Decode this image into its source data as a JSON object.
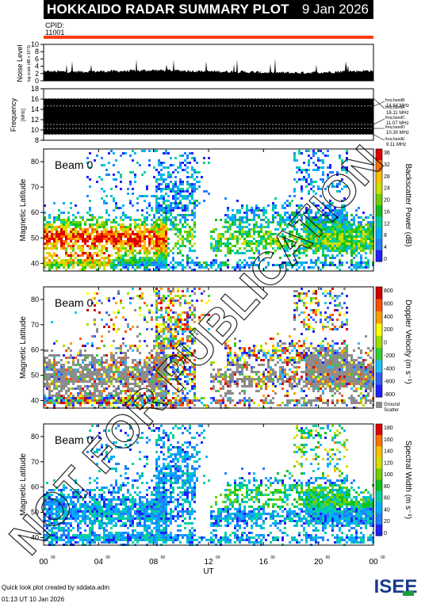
{
  "header": {
    "title": "HOKKAIDO RADAR SUMMARY PLOT",
    "date": "9 Jan 2026",
    "cpid_label": "CPID:",
    "cpid_value": "11001"
  },
  "footer": {
    "credit": "Quick look plot created by sddata.adm",
    "timestamp": "01:13 UT 10 Jan 2026",
    "logo_text": "ISEE"
  },
  "watermark": "NOT FOR PUBLICATION",
  "colors": {
    "red_bar": "#ff3b10",
    "ground_scatter": "#8c8c8c",
    "freq_band_fill": "#000000"
  },
  "chart_data": [
    {
      "type": "line",
      "id": "noise",
      "ylabel": "Noise Level",
      "ylabel_small": "log scale (dB x 10^3)",
      "ylim": [
        0,
        10
      ],
      "yticks": [
        "10",
        "8",
        "6",
        "4",
        "2",
        "0"
      ],
      "baseline_level": 2.5,
      "x_hours": [
        0,
        2,
        4,
        6,
        8,
        10,
        12,
        14,
        16,
        18,
        20,
        22,
        24
      ],
      "values": [
        2.6,
        2.5,
        2.6,
        2.7,
        2.9,
        2.8,
        2.6,
        2.5,
        2.3,
        2.2,
        2.3,
        2.6,
        2.8
      ]
    },
    {
      "type": "area",
      "id": "frequency",
      "ylabel": "Frequency",
      "ylabel_small": "[MHz]",
      "ylim": [
        8,
        18
      ],
      "yticks": [
        "18",
        "16",
        "14",
        "12",
        "10",
        "8"
      ],
      "band_range": [
        9.11,
        16.11
      ],
      "band_lines": [
        16.11,
        14.64,
        11.07,
        10.3,
        9.11
      ],
      "freq_bands": [
        {
          "name": "freq bandA",
          "value": "16.11 MHz"
        },
        {
          "name": "freq bandB",
          "value": "14.64 MHz"
        },
        {
          "name": "freq bandC",
          "value": "11.07 MHz"
        },
        {
          "name": "freq bandD",
          "value": "10.30 MHz"
        },
        {
          "name": "freq bandE",
          "value": "9.11 MHz"
        }
      ]
    },
    {
      "type": "heatmap",
      "id": "power",
      "beam": "Beam  0",
      "ylabel": "Magnetic Latitude",
      "yticks": [
        "80",
        "70",
        "60",
        "50",
        "40"
      ],
      "ylim": [
        37,
        85
      ],
      "colorbar_label": "Backscatter Power (dB)",
      "colorbar_ticks": [
        "36",
        "32",
        "28",
        "24",
        "20",
        "16",
        "12",
        "8",
        "4",
        "0"
      ],
      "colorbar_range": [
        0,
        36
      ]
    },
    {
      "type": "heatmap",
      "id": "velocity",
      "beam": "Beam  0",
      "ylabel": "Magnetic Latitude",
      "yticks": [
        "80",
        "70",
        "60",
        "50",
        "40"
      ],
      "ylim": [
        37,
        85
      ],
      "colorbar_label": "Doppler Velocity (m s⁻¹)",
      "colorbar_ticks": [
        "800",
        "600",
        "400",
        "200",
        "0",
        "-200",
        "-400",
        "-600",
        "-800"
      ],
      "colorbar_range": [
        -800,
        800
      ],
      "ground_scatter_label": [
        "Ground",
        "Scatter"
      ]
    },
    {
      "type": "heatmap",
      "id": "width",
      "beam": "Beam  0",
      "ylabel": "Magnetic Latitude",
      "yticks": [
        "80",
        "70",
        "60",
        "50",
        "40"
      ],
      "ylim": [
        37,
        85
      ],
      "colorbar_label": "Spectral Width (m s⁻¹)",
      "colorbar_ticks": [
        "180",
        "160",
        "140",
        "120",
        "100",
        "80",
        "60",
        "40",
        "20",
        "0"
      ],
      "colorbar_range": [
        0,
        180
      ],
      "xlabel": "UT",
      "xticks": [
        "00",
        "04",
        "08",
        "12",
        "16",
        "20",
        "00"
      ],
      "xtick_sup": "00",
      "xlim_hours": [
        0,
        24
      ]
    }
  ]
}
